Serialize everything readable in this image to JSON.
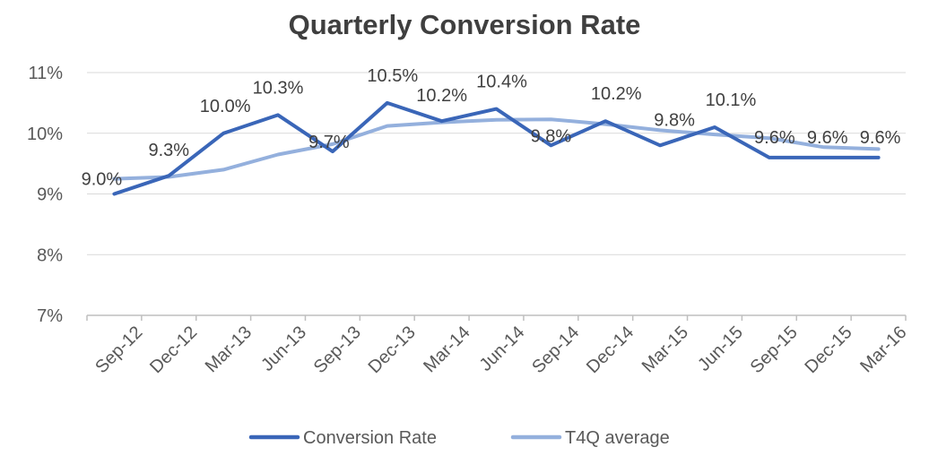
{
  "chart_data": {
    "type": "line",
    "title": "Quarterly Conversion Rate",
    "xlabel": "",
    "ylabel": "",
    "categories": [
      "Sep-12",
      "Dec-12",
      "Mar-13",
      "Jun-13",
      "Sep-13",
      "Dec-13",
      "Mar-14",
      "Jun-14",
      "Sep-14",
      "Dec-14",
      "Mar-15",
      "Jun-15",
      "Sep-15",
      "Dec-15",
      "Mar-16"
    ],
    "ylim": [
      7,
      11
    ],
    "yticks": [
      "7%",
      "8%",
      "9%",
      "10%",
      "11%"
    ],
    "grid": true,
    "legend_position": "bottom",
    "series": [
      {
        "name": "Conversion Rate",
        "color": "#3a66b8",
        "values": [
          9.0,
          9.3,
          10.0,
          10.3,
          9.7,
          10.5,
          10.2,
          10.4,
          9.8,
          10.2,
          9.8,
          10.1,
          9.6,
          9.6,
          9.6
        ],
        "labels": [
          "9.0%",
          "9.3%",
          "10.0%",
          "10.3%",
          "9.7%",
          "10.5%",
          "10.2%",
          "10.4%",
          "9.8%",
          "10.2%",
          "9.8%",
          "10.1%",
          "9.6%",
          "9.6%",
          "9.6%"
        ]
      },
      {
        "name": "T4Q average",
        "color": "#94b0dd",
        "values": [
          9.25,
          9.28,
          9.4,
          9.65,
          9.82,
          10.12,
          10.18,
          10.22,
          10.23,
          10.15,
          10.05,
          9.98,
          9.92,
          9.77,
          9.74
        ]
      }
    ]
  }
}
